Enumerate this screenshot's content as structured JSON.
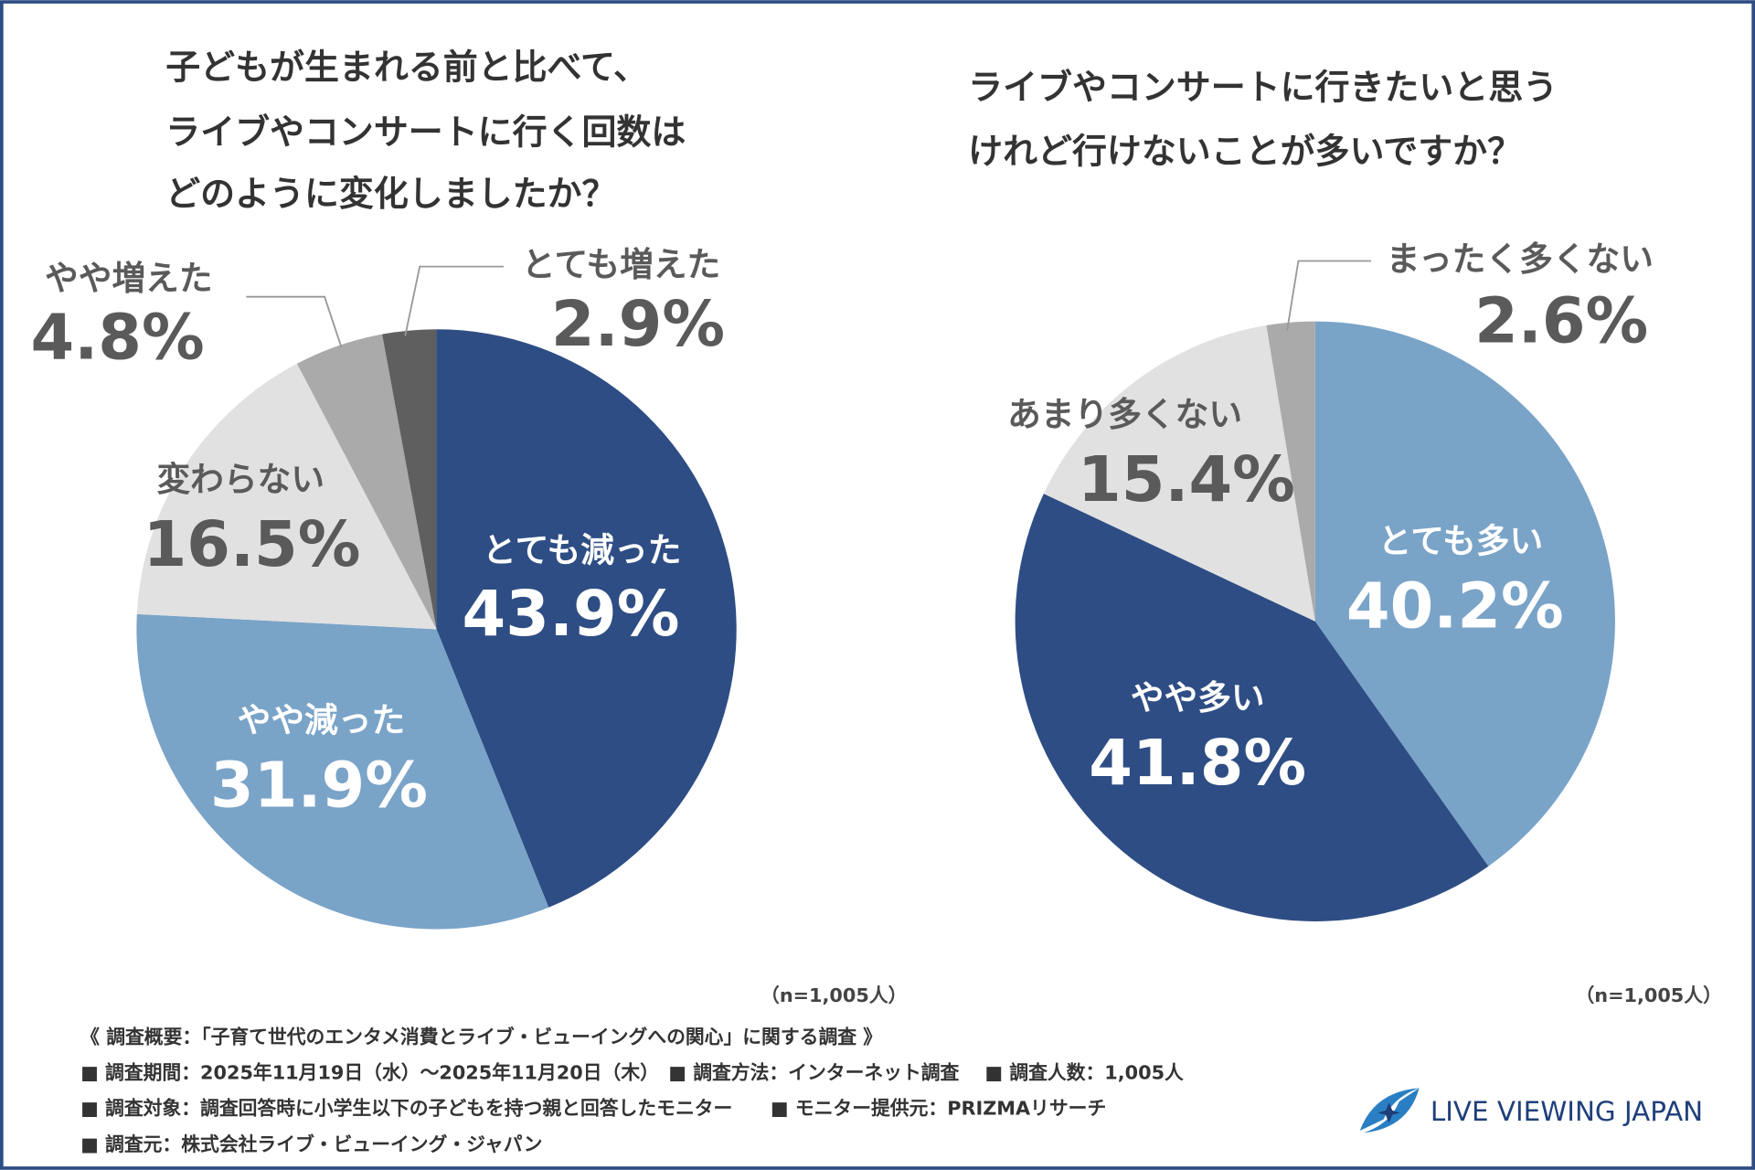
{
  "chart_data": [
    {
      "type": "pie",
      "title": [
        "子どもが生まれる前と比べて、",
        "ライブやコンサートに行く回数は",
        "どのように変化しましたか？"
      ],
      "categories": [
        "とても減った",
        "やや減った",
        "変わらない",
        "やや増えた",
        "とても増えた"
      ],
      "values": [
        43.9,
        31.9,
        16.5,
        4.8,
        2.9
      ],
      "value_labels": [
        "43.9%",
        "31.9%",
        "16.5%",
        "4.8%",
        "2.9%"
      ],
      "colors": [
        "#2e4d84",
        "#7aa3c8",
        "#e1e1e1",
        "#aaaaaa",
        "#5f5f5f"
      ],
      "note": "（n=1,005人）"
    },
    {
      "type": "pie",
      "title": [
        "ライブやコンサートに行きたいと思う",
        "けれど行けないことが多いですか？"
      ],
      "categories": [
        "とても多い",
        "やや多い",
        "あまり多くない",
        "まったく多くない"
      ],
      "values": [
        40.2,
        41.8,
        15.4,
        2.6
      ],
      "value_labels": [
        "40.2%",
        "41.8%",
        "15.4%",
        "2.6%"
      ],
      "colors": [
        "#7aa3c8",
        "#2e4d84",
        "#e1e1e1",
        "#aaaaaa"
      ],
      "note": "（n=1,005人）"
    }
  ],
  "footer": {
    "notes": [
      "《 調査概要：「子育て世代のエンタメ消費とライブ・ビューイングへの関心」に関する調査 》",
      "■ 調査期間：2025年11月19日（水）～2025年11月20日（木）　■ 調査方法：インターネット調査　 ■ 調査人数：1,005人",
      "■ 調査対象：調査回答時に小学生以下の子どもを持つ親と回答したモニター　　■ モニター提供元：PRIZMAリサーチ",
      "■ 調査元：株式会社ライブ・ビューイング・ジャパン"
    ],
    "logo": "LIVE VIEWING JAPAN"
  }
}
